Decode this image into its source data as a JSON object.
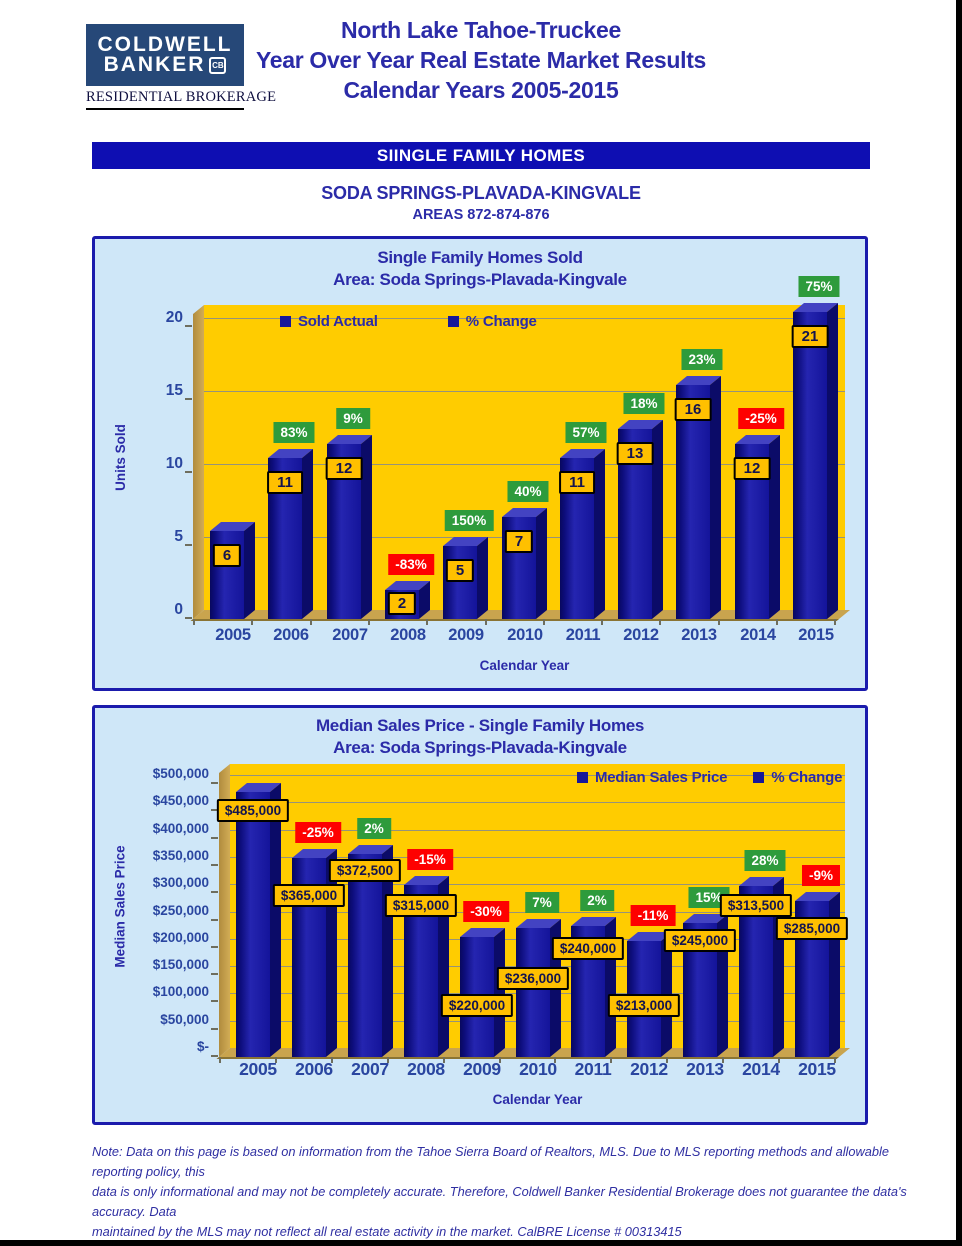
{
  "header": {
    "logo_line1": "COLDWELL",
    "logo_line2": "BANKER",
    "logo_mark": "CB",
    "logo_subtitle": "RESIDENTIAL BROKERAGE",
    "title_lines": [
      "North Lake Tahoe-Truckee",
      "Year Over Year Real Estate Market Results",
      "Calendar Years 2005-2015"
    ]
  },
  "section": {
    "banner": "SIINGLE FAMILY HOMES",
    "subtitle": "SODA SPRINGS-PLAVADA-KINGVALE",
    "areas": "AREAS 872-874-876"
  },
  "footnote_lines": [
    "Note: Data on this page is based on information from the Tahoe Sierra Board of Realtors, MLS.  Due to MLS reporting methods and allowable reporting policy, this",
    "data is only informational and may not be completely accurate.  Therefore, Coldwell Banker Residential Brokerage does not guarantee the data's accuracy.  Data",
    "maintained by the MLS may not reflect all real estate activity in the market.  CalBRE License # 00313415"
  ],
  "colors": {
    "navy_text": "#2B2BA8",
    "axis_text": "#2A46A0",
    "banner_bg": "#0E0EB2",
    "panel_bg": "#CFE7F8",
    "panel_border": "#1B1BAC",
    "plot_gold": "#FFCC00",
    "wall_tan": "#C8A24C",
    "bar_front": "#17179A",
    "bar_side": "#0B0B68",
    "bar_top": "#4343C2",
    "label_gold": "#FFC000",
    "badge_green": "#2E9B3C",
    "badge_red": "#FE0000"
  },
  "chart_data": [
    {
      "type": "bar",
      "title": "Single Family Homes Sold",
      "subtitle": "Area: Soda Springs-Plavada-Kingvale",
      "xlabel": "Calendar Year",
      "ylabel": "Units Sold",
      "legend": [
        "Sold Actual",
        "% Change"
      ],
      "legend_position": "top-left-inside",
      "grid": true,
      "categories": [
        "2005",
        "2006",
        "2007",
        "2008",
        "2009",
        "2010",
        "2011",
        "2012",
        "2013",
        "2014",
        "2015"
      ],
      "series": [
        {
          "name": "Sold Actual",
          "values": [
            6,
            11,
            12,
            2,
            5,
            7,
            11,
            13,
            16,
            12,
            21
          ],
          "value_labels": [
            "6",
            "11",
            "12",
            "2",
            "5",
            "7",
            "11",
            "13",
            "16",
            "12",
            "21"
          ]
        },
        {
          "name": "% Change",
          "values": [
            null,
            83,
            9,
            -83,
            150,
            40,
            57,
            18,
            23,
            -25,
            75
          ],
          "value_labels": [
            "",
            "83%",
            "9%",
            "-83%",
            "150%",
            "40%",
            "57%",
            "18%",
            "23%",
            "-25%",
            "75%"
          ]
        }
      ],
      "ylim": [
        0,
        20
      ],
      "yticks": [
        "20",
        "15",
        "10",
        "5",
        "0"
      ]
    },
    {
      "type": "bar",
      "title": "Median Sales Price - Single Family Homes",
      "subtitle": "Area: Soda Springs-Plavada-Kingvale",
      "xlabel": "Calendar Year",
      "ylabel": "Median Sales Price",
      "legend": [
        "Median Sales Price",
        "% Change"
      ],
      "legend_position": "top-right-inside",
      "grid": true,
      "categories": [
        "2005",
        "2006",
        "2007",
        "2008",
        "2009",
        "2010",
        "2011",
        "2012",
        "2013",
        "2014",
        "2015"
      ],
      "series": [
        {
          "name": "Median Sales Price",
          "values": [
            485000,
            365000,
            372500,
            315000,
            220000,
            236000,
            240000,
            213000,
            245000,
            313500,
            285000
          ],
          "value_labels": [
            "$485,000",
            "$365,000",
            "$372,500",
            "$315,000",
            "$220,000",
            "$236,000",
            "$240,000",
            "$213,000",
            "$245,000",
            "$313,500",
            "$285,000"
          ]
        },
        {
          "name": "% Change",
          "values": [
            null,
            -25,
            2,
            -15,
            -30,
            7,
            2,
            -11,
            15,
            28,
            -9
          ],
          "value_labels": [
            "",
            "-25%",
            "2%",
            "-15%",
            "-30%",
            "7%",
            "2%",
            "-11%",
            "15%",
            "28%",
            "-9%"
          ]
        }
      ],
      "ylim": [
        0,
        500000
      ],
      "yticks": [
        "$500,000",
        "$450,000",
        "$400,000",
        "$350,000",
        "$300,000",
        "$250,000",
        "$200,000",
        "$150,000",
        "$100,000",
        "$50,000",
        "$-"
      ]
    }
  ]
}
